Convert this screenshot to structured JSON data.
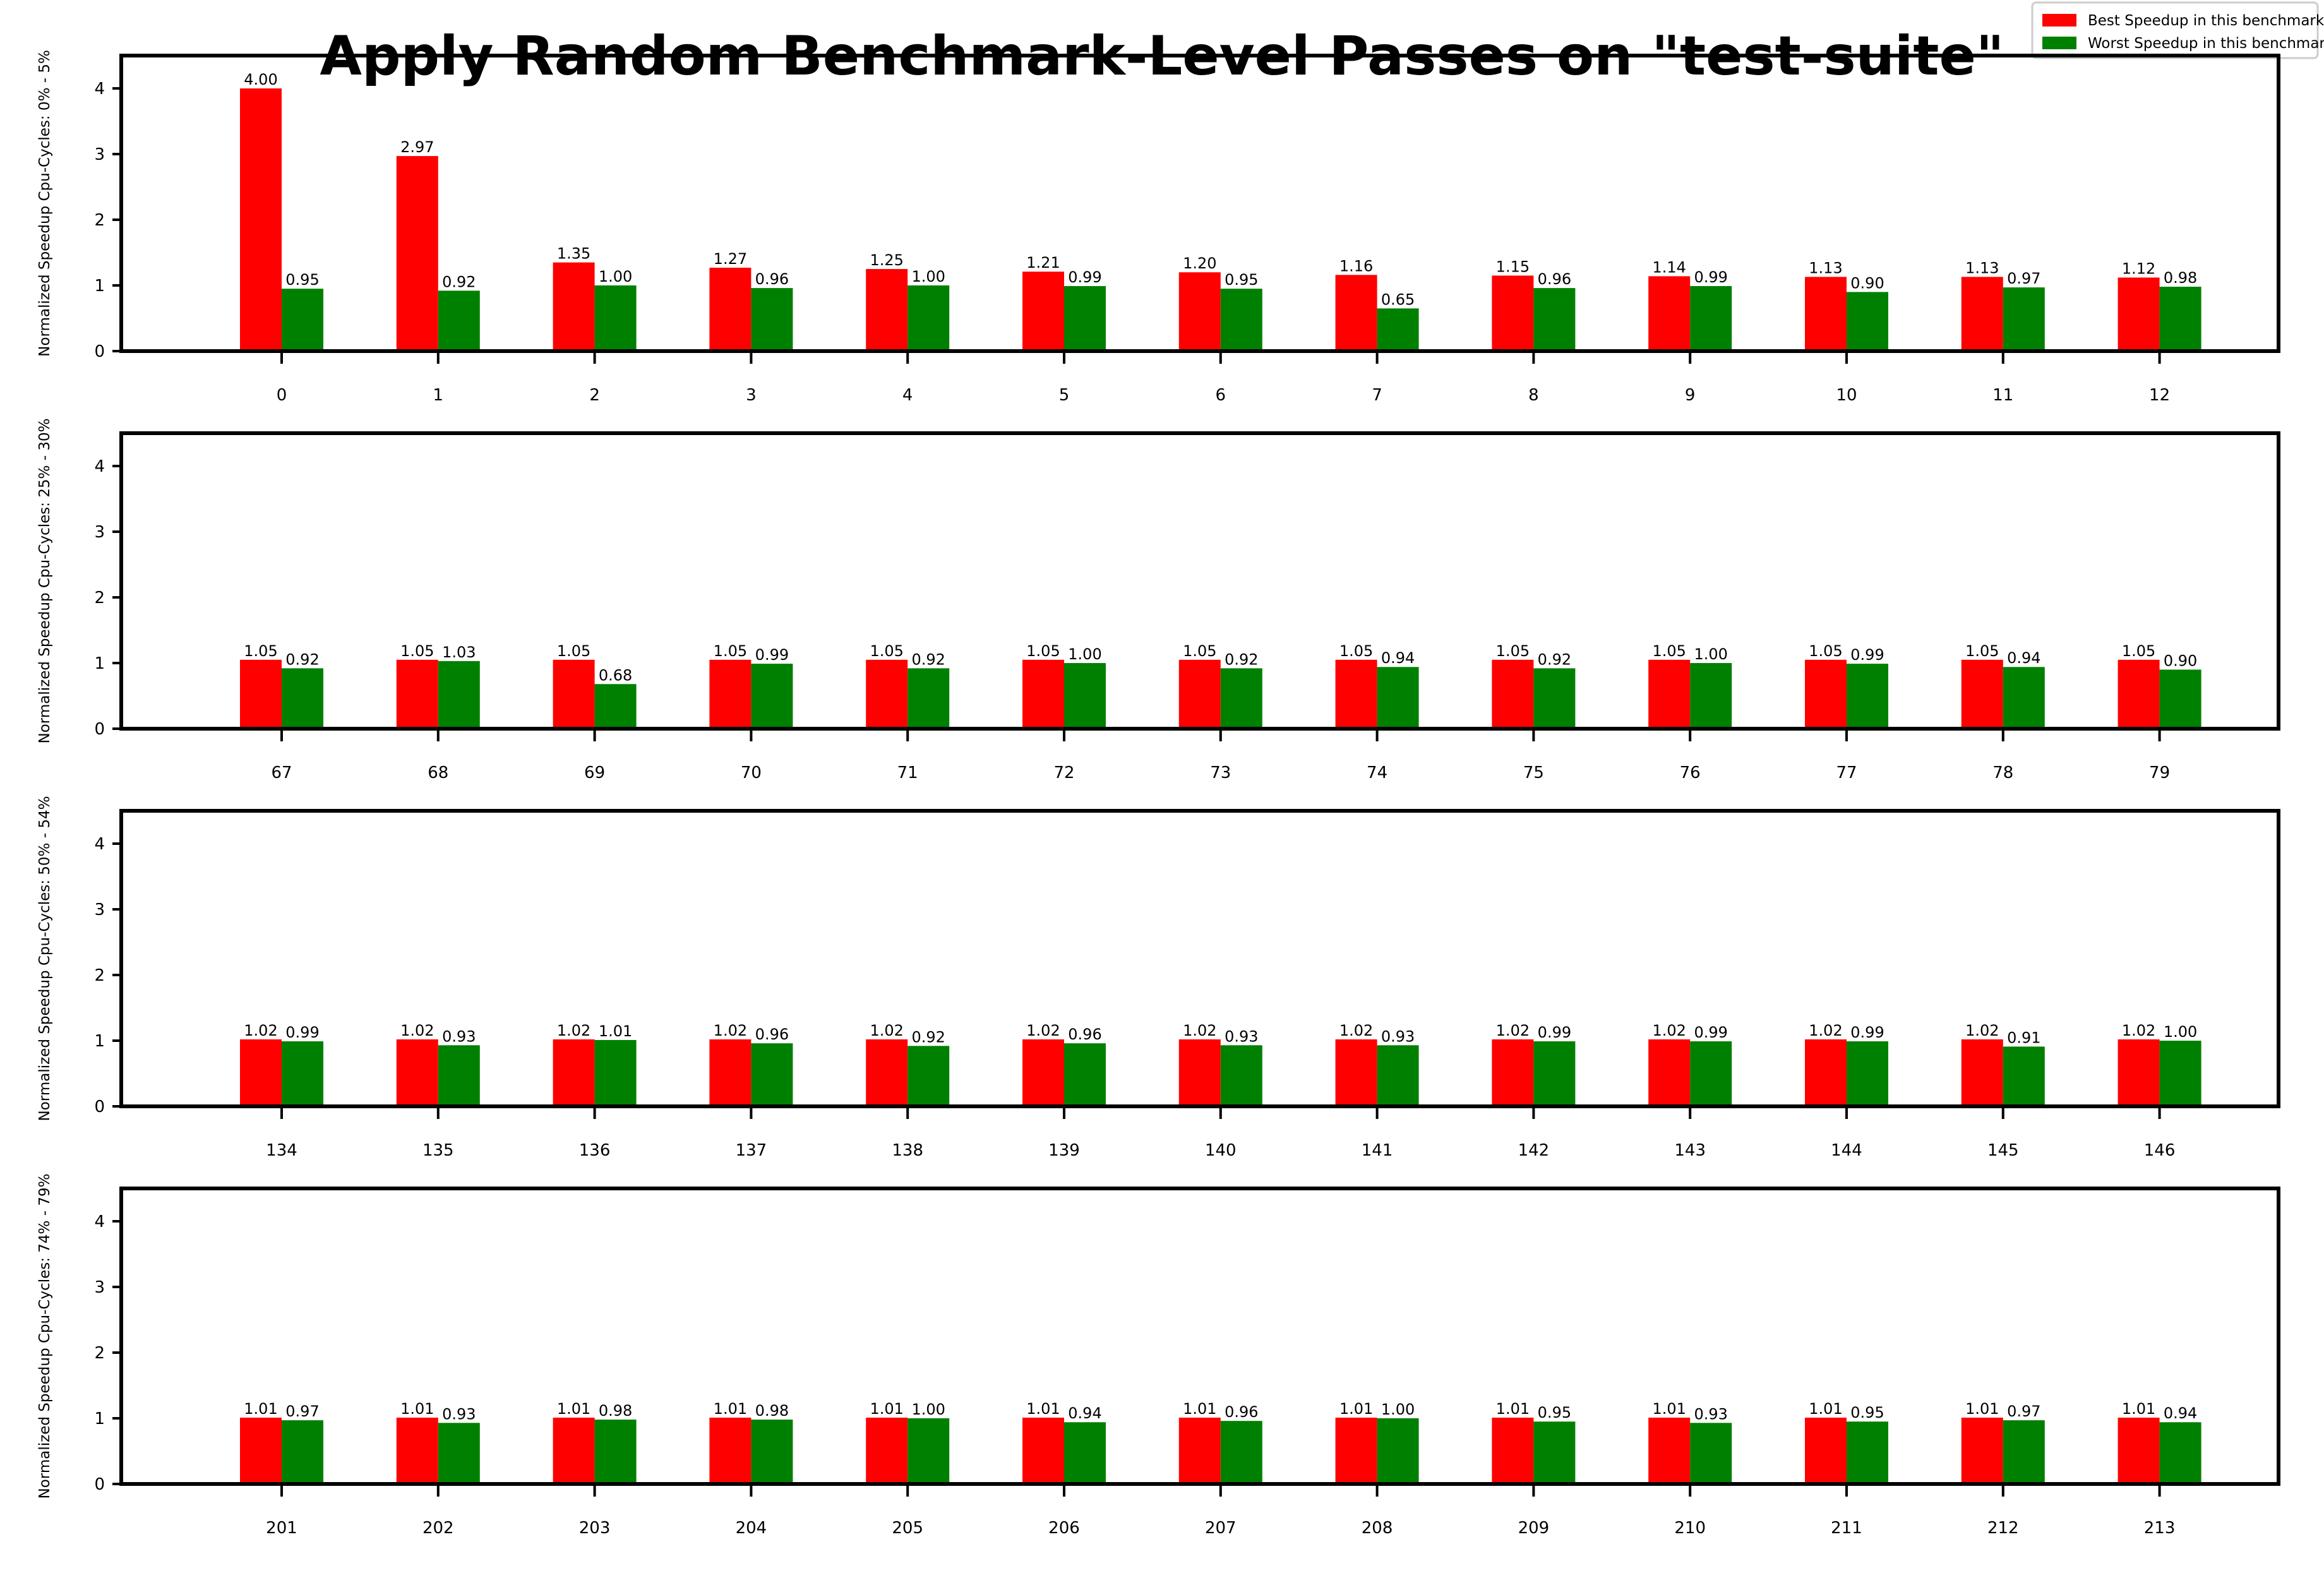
{
  "chart_data": {
    "title": "Apply Random Benchmark-Level Passes on \"test-suite\"",
    "type": "bar",
    "legend": {
      "placement": "top-right",
      "entries": [
        {
          "label": "Best Speedup in this benchmark",
          "color": "#ff0000"
        },
        {
          "label": "Worst Speedup in this benchmark",
          "color": "#008000"
        }
      ]
    },
    "y_ticks": [
      0,
      1,
      2,
      3,
      4
    ],
    "ylim": [
      0,
      4.5
    ],
    "subplots": [
      {
        "ylabel": "Normalized Speedup Cpu-Cycles: 0% - 5%",
        "categories": [
          "0",
          "1",
          "2",
          "3",
          "4",
          "5",
          "6",
          "7",
          "8",
          "9",
          "10",
          "11",
          "12"
        ],
        "best": [
          4.0,
          2.97,
          1.35,
          1.27,
          1.25,
          1.21,
          1.2,
          1.16,
          1.15,
          1.14,
          1.13,
          1.13,
          1.12
        ],
        "best_labels": [
          "4.00",
          "2.97",
          "1.35",
          "1.27",
          "1.25",
          "1.21",
          "1.20",
          "1.16",
          "1.15",
          "1.14",
          "1.13",
          "1.13",
          "1.12"
        ],
        "worst": [
          0.95,
          0.92,
          1.0,
          0.96,
          1.0,
          0.99,
          0.95,
          0.65,
          0.96,
          0.99,
          0.9,
          0.97,
          0.98
        ],
        "worst_labels": [
          "0.95",
          "0.92",
          "1.00",
          "0.96",
          "1.00",
          "0.99",
          "0.95",
          "0.65",
          "0.96",
          "0.99",
          "0.90",
          "0.97",
          "0.98"
        ]
      },
      {
        "ylabel": "Normalized Speedup Cpu-Cycles: 25% - 30%",
        "categories": [
          "67",
          "68",
          "69",
          "70",
          "71",
          "72",
          "73",
          "74",
          "75",
          "76",
          "77",
          "78",
          "79"
        ],
        "best": [
          1.05,
          1.05,
          1.05,
          1.05,
          1.05,
          1.05,
          1.05,
          1.05,
          1.05,
          1.05,
          1.05,
          1.05,
          1.05
        ],
        "best_labels": [
          "1.05",
          "1.05",
          "1.05",
          "1.05",
          "1.05",
          "1.05",
          "1.05",
          "1.05",
          "1.05",
          "1.05",
          "1.05",
          "1.05",
          "1.05"
        ],
        "worst": [
          0.92,
          1.03,
          0.68,
          0.99,
          0.92,
          1.0,
          0.92,
          0.94,
          0.92,
          1.0,
          0.99,
          0.94,
          0.9
        ],
        "worst_labels": [
          "0.92",
          "1.03",
          "0.68",
          "0.99",
          "0.92",
          "1.00",
          "0.92",
          "0.94",
          "0.92",
          "1.00",
          "0.99",
          "0.94",
          "0.90"
        ]
      },
      {
        "ylabel": "Normalized Speedup Cpu-Cycles: 50% - 54%",
        "categories": [
          "134",
          "135",
          "136",
          "137",
          "138",
          "139",
          "140",
          "141",
          "142",
          "143",
          "144",
          "145",
          "146"
        ],
        "best": [
          1.02,
          1.02,
          1.02,
          1.02,
          1.02,
          1.02,
          1.02,
          1.02,
          1.02,
          1.02,
          1.02,
          1.02,
          1.02
        ],
        "best_labels": [
          "1.02",
          "1.02",
          "1.02",
          "1.02",
          "1.02",
          "1.02",
          "1.02",
          "1.02",
          "1.02",
          "1.02",
          "1.02",
          "1.02",
          "1.02"
        ],
        "worst": [
          0.99,
          0.93,
          1.01,
          0.96,
          0.92,
          0.96,
          0.93,
          0.93,
          0.99,
          0.99,
          0.99,
          0.91,
          1.0
        ],
        "worst_labels": [
          "0.99",
          "0.93",
          "1.01",
          "0.96",
          "0.92",
          "0.96",
          "0.93",
          "0.93",
          "0.99",
          "0.99",
          "0.99",
          "0.91",
          "1.00"
        ]
      },
      {
        "ylabel": "Normalized Speedup Cpu-Cycles: 74% - 79%",
        "categories": [
          "201",
          "202",
          "203",
          "204",
          "205",
          "206",
          "207",
          "208",
          "209",
          "210",
          "211",
          "212",
          "213"
        ],
        "best": [
          1.01,
          1.01,
          1.01,
          1.01,
          1.01,
          1.01,
          1.01,
          1.01,
          1.01,
          1.01,
          1.01,
          1.01,
          1.01
        ],
        "best_labels": [
          "1.01",
          "1.01",
          "1.01",
          "1.01",
          "1.01",
          "1.01",
          "1.01",
          "1.01",
          "1.01",
          "1.01",
          "1.01",
          "1.01",
          "1.01"
        ],
        "worst": [
          0.97,
          0.93,
          0.98,
          0.98,
          1.0,
          0.94,
          0.96,
          1.0,
          0.95,
          0.93,
          0.95,
          0.97,
          0.94
        ],
        "worst_labels": [
          "0.97",
          "0.93",
          "0.98",
          "0.98",
          "1.00",
          "0.94",
          "0.96",
          "1.00",
          "0.95",
          "0.93",
          "0.95",
          "0.97",
          "0.94"
        ]
      }
    ]
  }
}
